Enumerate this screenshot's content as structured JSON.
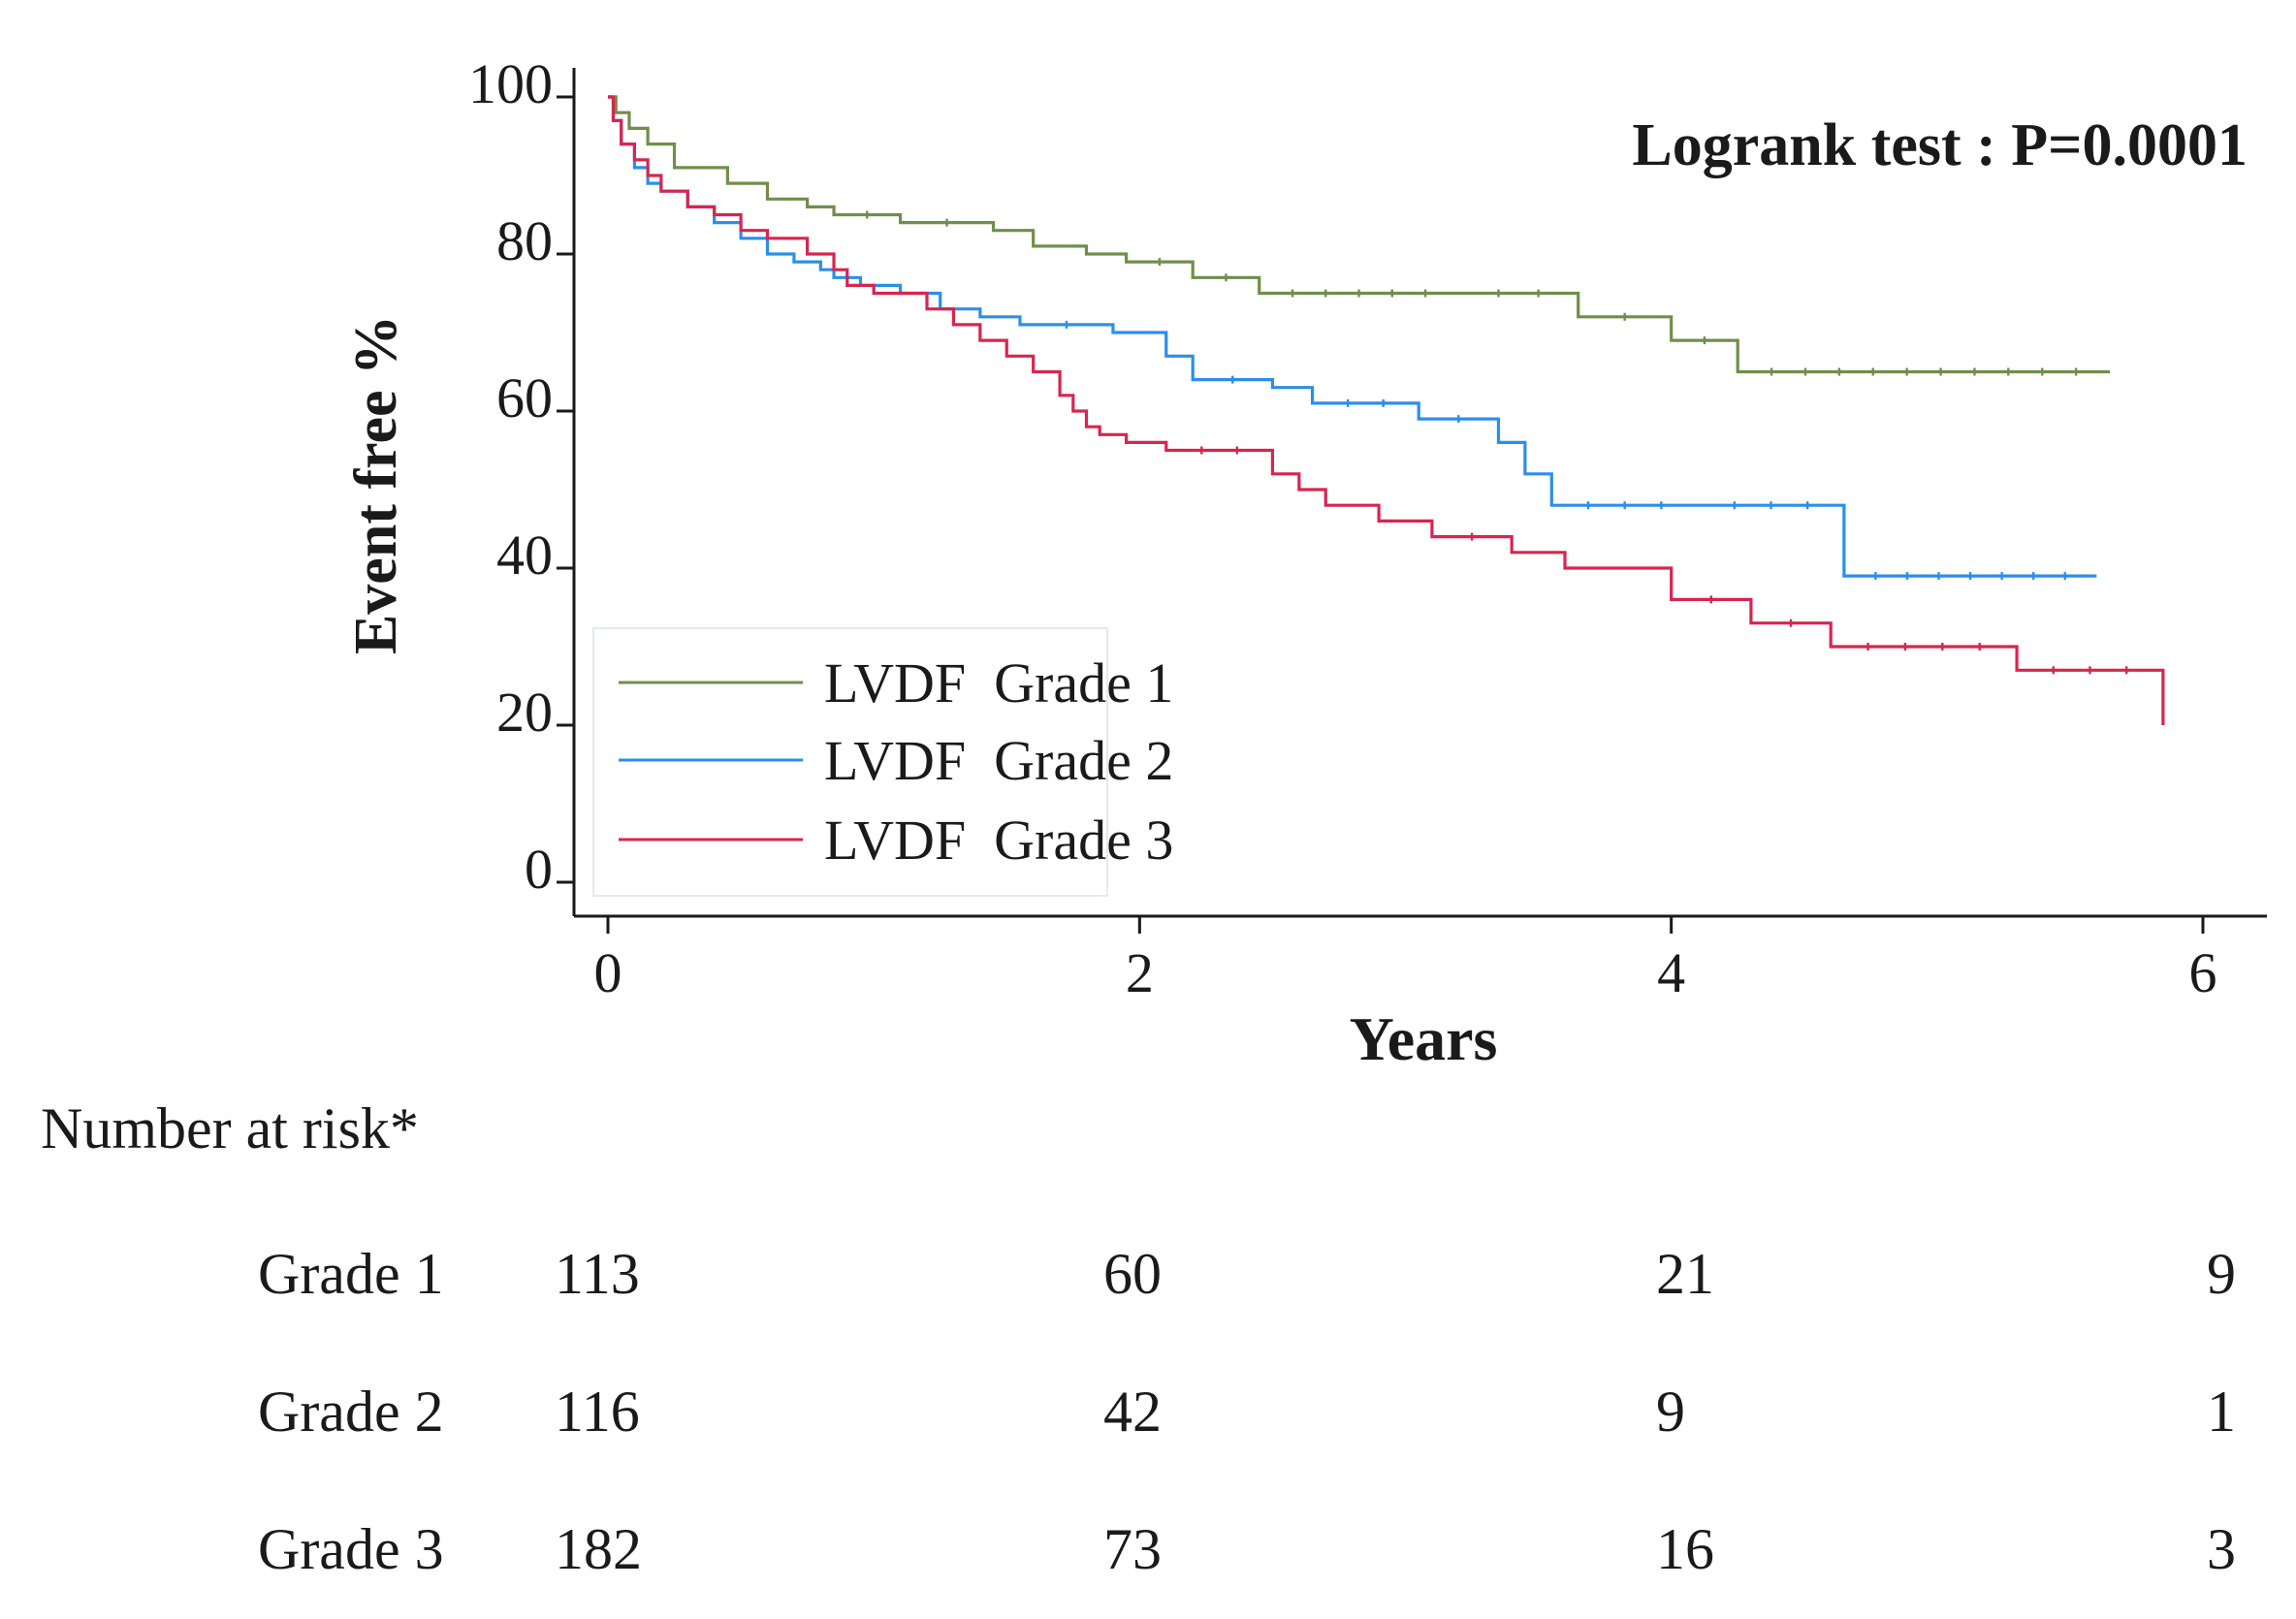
{
  "chart_data": {
    "type": "line",
    "title": "",
    "annotation": "Logrank test : P=0.0001",
    "xlabel": "Years",
    "ylabel": "Event free %",
    "xlim": [
      0,
      6
    ],
    "ylim": [
      0,
      100
    ],
    "xticks": [
      "0",
      "2",
      "4",
      "6"
    ],
    "yticks": [
      "0",
      "20",
      "40",
      "60",
      "80",
      "100"
    ],
    "legend": "bottom-left",
    "series": [
      {
        "name": "LVDF  Grade 1",
        "color": "#6f8f4a",
        "x": [
          0,
          0.03,
          0.08,
          0.15,
          0.25,
          0.45,
          0.6,
          0.75,
          0.85,
          1.1,
          1.45,
          1.6,
          1.8,
          1.95,
          2.2,
          2.45,
          3.2,
          3.65,
          4.0,
          4.25,
          5.65
        ],
        "y": [
          100,
          98,
          96,
          94,
          91,
          89,
          87,
          86,
          85,
          84,
          83,
          81,
          80,
          79,
          77,
          75,
          75,
          72,
          69,
          65,
          65
        ]
      },
      {
        "name": "LVDF  Grade 2",
        "color": "#2b8fe8",
        "x": [
          0,
          0.02,
          0.05,
          0.1,
          0.15,
          0.2,
          0.3,
          0.4,
          0.5,
          0.6,
          0.7,
          0.8,
          0.85,
          0.95,
          1.1,
          1.25,
          1.4,
          1.55,
          1.9,
          2.1,
          2.2,
          2.5,
          2.65,
          3.05,
          3.35,
          3.45,
          3.55,
          4.1,
          4.65,
          5.6
        ],
        "y": [
          100,
          97,
          94,
          91,
          89,
          88,
          86,
          84,
          82,
          80,
          79,
          78,
          77,
          76,
          75,
          73,
          72,
          71,
          70,
          67,
          64,
          63,
          61,
          59,
          56,
          52,
          48,
          48,
          39,
          39
        ]
      },
      {
        "name": "LVDF  Grade 3",
        "color": "#d6264f",
        "x": [
          0,
          0.02,
          0.05,
          0.1,
          0.15,
          0.2,
          0.3,
          0.4,
          0.5,
          0.6,
          0.75,
          0.85,
          0.9,
          1.0,
          1.2,
          1.3,
          1.4,
          1.5,
          1.6,
          1.7,
          1.75,
          1.8,
          1.85,
          1.95,
          2.1,
          2.5,
          2.6,
          2.7,
          2.9,
          3.1,
          3.4,
          3.6,
          3.8,
          4.0,
          4.3,
          4.6,
          5.3,
          5.85
        ],
        "y": [
          100,
          97,
          94,
          92,
          90,
          88,
          86,
          85,
          83,
          82,
          80,
          78,
          76,
          75,
          73,
          71,
          69,
          67,
          65,
          62,
          60,
          58,
          57,
          56,
          55,
          52,
          50,
          48,
          46,
          44,
          42,
          40,
          40,
          36,
          33,
          30,
          27,
          20
        ]
      }
    ],
    "risk_table": {
      "title": "Number at risk*",
      "rows": [
        {
          "label": "Grade 1",
          "values": [
            "113",
            "60",
            "21",
            "9"
          ]
        },
        {
          "label": "Grade 2",
          "values": [
            "116",
            "42",
            "9",
            "1"
          ]
        },
        {
          "label": "Grade 3",
          "values": [
            "182",
            "73",
            "16",
            "3"
          ]
        }
      ]
    }
  }
}
